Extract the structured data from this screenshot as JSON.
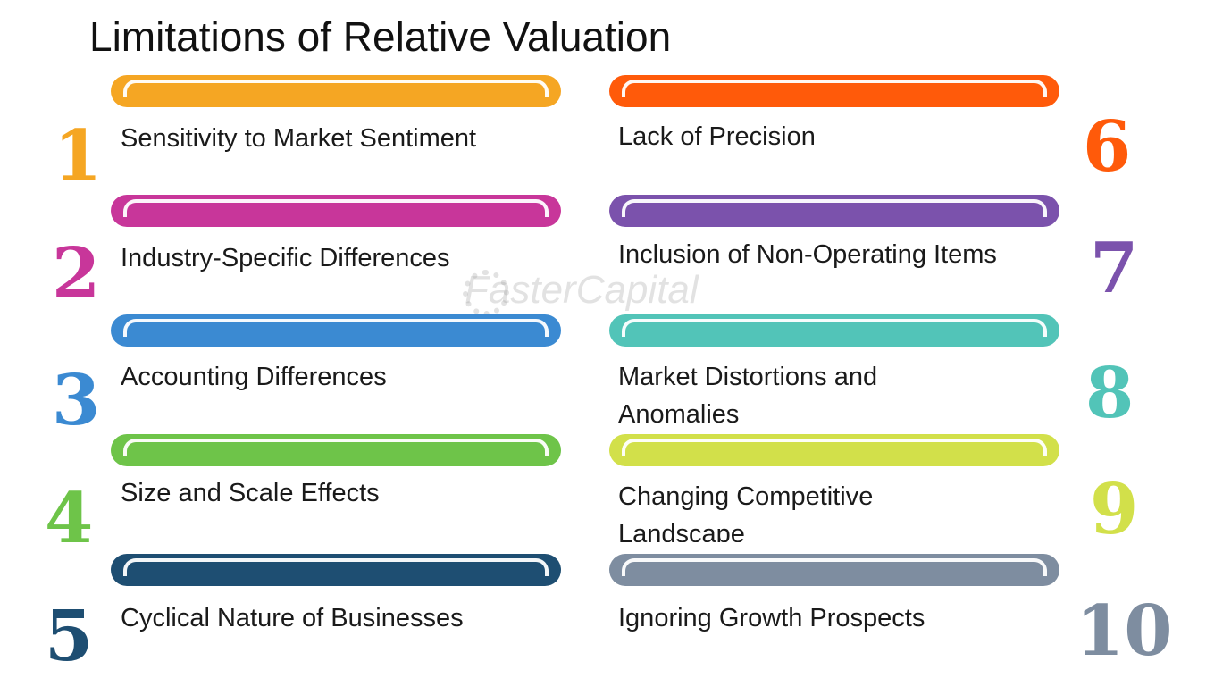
{
  "title": "Limitations of Relative Valuation",
  "watermark": "FasterCapital",
  "items": [
    {
      "number": "1",
      "label": "Sensitivity to Market Sentiment",
      "color": "#F5A623"
    },
    {
      "number": "2",
      "label": "Industry-Specific Differences",
      "color": "#C8369A"
    },
    {
      "number": "3",
      "label": "Accounting Differences",
      "color": "#3B8AD2"
    },
    {
      "number": "4",
      "label": "Size and Scale Effects",
      "color": "#6EC449"
    },
    {
      "number": "5",
      "label": "Cyclical Nature of Businesses",
      "color": "#1E4E72"
    },
    {
      "number": "6",
      "label": "Lack of Precision",
      "color": "#FF5A0A"
    },
    {
      "number": "7",
      "label": "Inclusion of Non-Operating Items",
      "color": "#7B52AC"
    },
    {
      "number": "8",
      "label": "Market Distortions and Anomalies",
      "color": "#52C4B8"
    },
    {
      "number": "9",
      "label": "Changing Competitive Landscape",
      "color": "#D2E04A"
    },
    {
      "number": "10",
      "label": "Ignoring Growth Prospects",
      "color": "#7E8DA0"
    }
  ]
}
